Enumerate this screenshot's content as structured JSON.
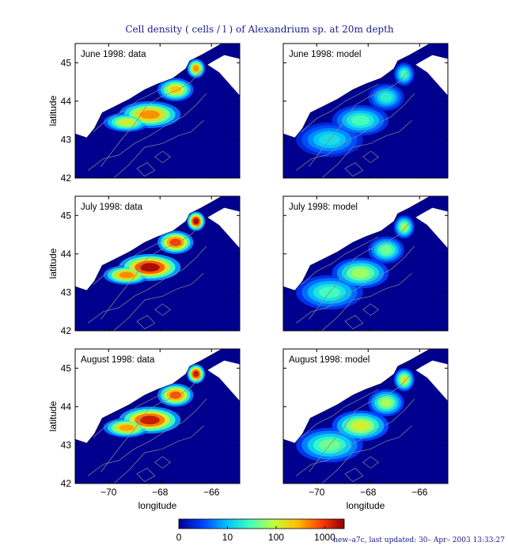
{
  "chart_data": {
    "type": "heatmap",
    "title": "Cell density ( cells / l ) of Alexandrium sp. at 20m depth",
    "xlabel": "longitude",
    "ylabel": "latitude",
    "xlim": [
      -71.3,
      -64.9
    ],
    "ylim": [
      42.0,
      45.5
    ],
    "xticks": [
      -70,
      -68,
      -66
    ],
    "xtick_labels": [
      "−70",
      "−68",
      "−66"
    ],
    "yticks": [
      42,
      43,
      44,
      45
    ],
    "ytick_labels": [
      "42",
      "43",
      "44",
      "45"
    ],
    "panels": [
      {
        "label": "June 1998: data",
        "month": "June",
        "source": "data",
        "peak_level": 2.3
      },
      {
        "label": "June 1998: model",
        "month": "June",
        "source": "model",
        "peak_level": 1.3
      },
      {
        "label": "July 1998: data",
        "month": "July",
        "source": "data",
        "peak_level": 2.9
      },
      {
        "label": "July 1998: model",
        "month": "July",
        "source": "model",
        "peak_level": 1.6
      },
      {
        "label": "August 1998: data",
        "month": "August",
        "source": "data",
        "peak_level": 2.8
      },
      {
        "label": "August 1998: model",
        "month": "August",
        "source": "model",
        "peak_level": 1.8
      }
    ],
    "colorbar": {
      "scale": "log",
      "ticks": [
        0,
        10,
        100,
        1000
      ],
      "tick_labels": [
        "0",
        "10",
        "100",
        "1000"
      ],
      "colors": [
        "#00008f",
        "#0040ff",
        "#00c0ff",
        "#40ffbf",
        "#c0ff40",
        "#ffc000",
        "#ff4000",
        "#8f0000"
      ]
    },
    "grid": false
  },
  "footer": "new–a7c, last updated: 30– Apr– 2003 13:33:27"
}
